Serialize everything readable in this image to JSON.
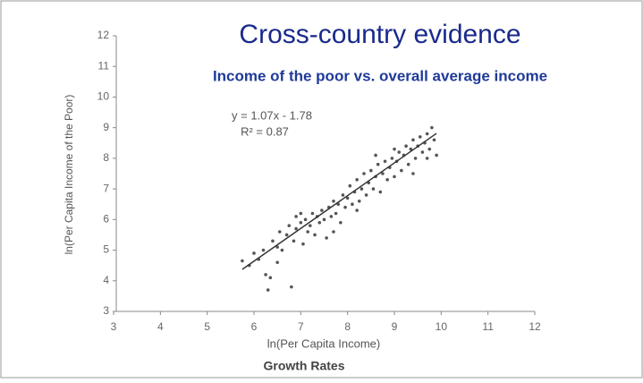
{
  "chart_data": {
    "type": "scatter",
    "title": "Cross-country evidence",
    "subtitle": "Income of the poor vs. overall average income",
    "xlabel": "ln(Per Capita Income)",
    "ylabel": "ln(Per Capita Income of the Poor)",
    "footer": "Growth Rates",
    "equation": "y = 1.07x - 1.78",
    "r_squared": "R² = 0.87",
    "fit": {
      "slope": 1.07,
      "intercept": -1.78,
      "x": [
        5.75,
        9.9
      ]
    },
    "color": "#555555",
    "xlim": [
      3,
      12
    ],
    "xticks": [
      3,
      4,
      5,
      6,
      7,
      8,
      9,
      10,
      11,
      12
    ],
    "ylim": [
      3,
      12
    ],
    "yticks": [
      3,
      4,
      5,
      6,
      7,
      8,
      9,
      10,
      11,
      12
    ],
    "x": [
      5.75,
      5.9,
      6.0,
      6.1,
      6.2,
      6.25,
      6.3,
      6.35,
      6.4,
      6.5,
      6.55,
      6.6,
      6.7,
      6.75,
      6.8,
      6.85,
      6.9,
      7.0,
      7.05,
      7.1,
      7.15,
      7.2,
      7.25,
      7.3,
      7.35,
      7.4,
      7.45,
      7.5,
      7.55,
      7.6,
      7.65,
      7.7,
      7.75,
      7.8,
      7.85,
      7.9,
      7.95,
      8.0,
      8.05,
      8.1,
      8.15,
      8.2,
      8.25,
      8.3,
      8.35,
      8.4,
      8.45,
      8.5,
      8.55,
      8.6,
      8.65,
      8.7,
      8.75,
      8.8,
      8.85,
      8.9,
      8.95,
      9.0,
      9.05,
      9.1,
      9.15,
      9.2,
      9.25,
      9.3,
      9.35,
      9.4,
      9.45,
      9.5,
      9.55,
      9.6,
      9.65,
      9.7,
      9.75,
      9.8,
      9.85,
      9.9,
      9.4,
      9.0,
      8.2,
      7.7,
      7.0,
      6.9,
      6.5,
      8.6,
      9.7
    ],
    "y": [
      4.65,
      4.5,
      4.9,
      4.7,
      5.0,
      4.2,
      3.7,
      4.1,
      5.3,
      5.1,
      5.6,
      5.0,
      5.5,
      5.8,
      3.8,
      5.3,
      5.7,
      5.9,
      5.2,
      6.0,
      5.6,
      5.8,
      6.2,
      5.5,
      6.1,
      5.9,
      6.3,
      6.0,
      5.4,
      6.4,
      6.1,
      6.6,
      6.2,
      6.5,
      5.9,
      6.8,
      6.4,
      6.7,
      7.1,
      6.5,
      6.9,
      7.3,
      6.6,
      7.0,
      7.5,
      6.8,
      7.2,
      7.6,
      7.0,
      7.4,
      7.8,
      6.9,
      7.5,
      7.9,
      7.3,
      7.7,
      8.0,
      7.4,
      7.9,
      8.2,
      7.6,
      8.1,
      8.4,
      7.8,
      8.3,
      8.6,
      8.0,
      8.4,
      8.7,
      8.2,
      8.5,
      8.8,
      8.3,
      9.0,
      8.6,
      8.1,
      7.5,
      8.3,
      6.3,
      5.6,
      6.2,
      6.1,
      4.6,
      8.1,
      8.0
    ]
  }
}
